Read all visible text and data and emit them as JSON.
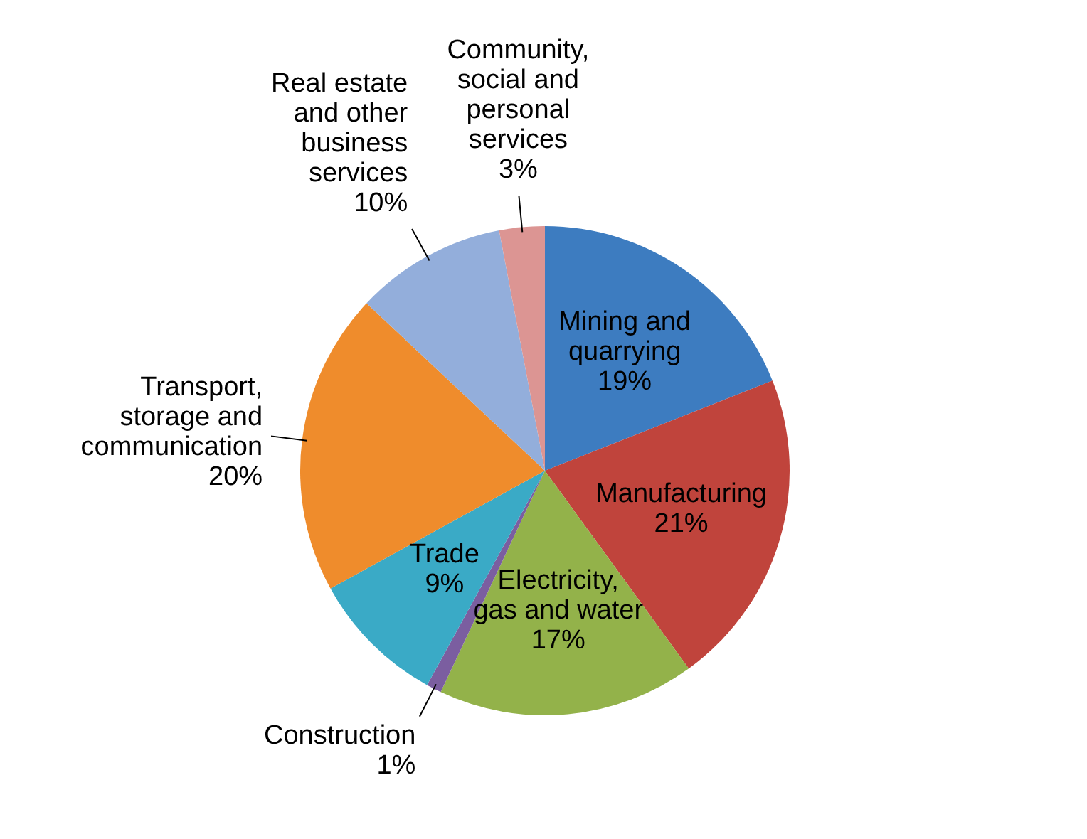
{
  "chart_data": {
    "type": "pie",
    "categories": [
      "Mining and quarrying",
      "Manufacturing",
      "Electricity, gas and water",
      "Construction",
      "Trade",
      "Transport, storage and communication",
      "Real estate and other business services",
      "Community, social and personal services"
    ],
    "values": [
      19,
      21,
      17,
      1,
      9,
      20,
      10,
      3
    ],
    "value_labels": [
      "19%",
      "21%",
      "17%",
      "1%",
      "9%",
      "20%",
      "10%",
      "3%"
    ],
    "colors": [
      "#3d7cc0",
      "#c0443c",
      "#93b24a",
      "#7b5ea0",
      "#3aaac6",
      "#ef8c2c",
      "#93aedb",
      "#dc9593"
    ],
    "legend": false
  }
}
